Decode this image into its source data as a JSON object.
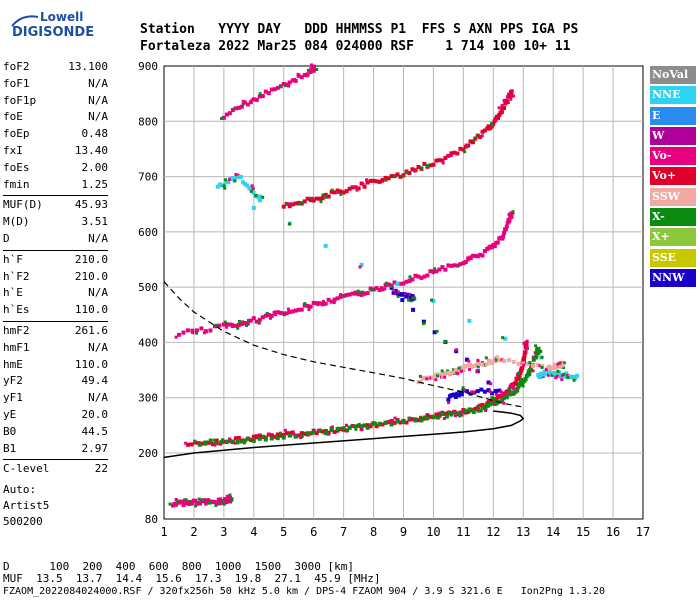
{
  "logo": {
    "line1": "Lowell",
    "line2": "DIGISONDE"
  },
  "header": {
    "line1": "Station   YYYY DAY   DDD HHMMSS P1  FFS S AXN PPS IGA PS",
    "line2": "Fortaleza 2022 Mar25 084 024000 RSF    1 714 100 10+ 11"
  },
  "params_groups": [
    [
      [
        "foF2",
        "13.100"
      ],
      [
        "foF1",
        "N/A"
      ],
      [
        "foF1p",
        "N/A"
      ],
      [
        "foE",
        "N/A"
      ],
      [
        "foEp",
        "0.48"
      ],
      [
        "fxI",
        "13.40"
      ],
      [
        "foEs",
        "2.00"
      ],
      [
        "fmin",
        "1.25"
      ]
    ],
    [
      [
        "MUF(D)",
        "45.93"
      ],
      [
        "M(D)",
        "3.51"
      ],
      [
        "D",
        "N/A"
      ]
    ],
    [
      [
        "h`F",
        "210.0"
      ],
      [
        "h`F2",
        "210.0"
      ],
      [
        "h`E",
        "N/A"
      ],
      [
        "h`Es",
        "110.0"
      ]
    ],
    [
      [
        "hmF2",
        "261.6"
      ],
      [
        "hmF1",
        "N/A"
      ],
      [
        "hmE",
        "110.0"
      ],
      [
        "yF2",
        "49.4"
      ],
      [
        "yF1",
        "N/A"
      ],
      [
        "yE",
        "20.0"
      ],
      [
        "B0",
        "44.5"
      ],
      [
        "B1",
        "2.97"
      ]
    ],
    [
      [
        "C-level",
        "22"
      ]
    ]
  ],
  "auto": {
    "line1": "Auto:",
    "line2": "Artist5",
    "line3": "500200"
  },
  "legend": [
    {
      "label": "NoVal",
      "color": "#8c8c8c"
    },
    {
      "label": "NNE",
      "color": "#2fd3f2"
    },
    {
      "label": "E",
      "color": "#2a8cf0"
    },
    {
      "label": "W",
      "color": "#b0009a"
    },
    {
      "label": "Vo-",
      "color": "#e8007e"
    },
    {
      "label": "Vo+",
      "color": "#e0002a"
    },
    {
      "label": "SSW",
      "color": "#f2a9a3"
    },
    {
      "label": "X-",
      "color": "#0a8a10"
    },
    {
      "label": "X+",
      "color": "#8cc83c"
    },
    {
      "label": "SSE",
      "color": "#c8c800"
    },
    {
      "label": "NNW",
      "color": "#1a00c8"
    }
  ],
  "bottom": {
    "line1": "D      100  200  400  600  800  1000  1500  3000 [km]",
    "line2": "MUF  13.5  13.7  14.4  15.6  17.3  19.8  27.1  45.9 [MHz]",
    "line3": "FZAOM_2022084024000.RSF / 320fx256h 50 kHz 5.0 km / DPS-4 FZAOM 904 / 3.9 S 321.6 E   Ion2Png 1.3.20"
  },
  "chart_data": {
    "type": "scatter",
    "xlim": [
      1,
      17
    ],
    "ylim": [
      80,
      900
    ],
    "x_ticks": [
      1,
      2,
      3,
      4,
      5,
      6,
      7,
      8,
      9,
      10,
      11,
      12,
      13,
      14,
      15,
      16,
      17
    ],
    "y_ticks": [
      80,
      200,
      300,
      400,
      500,
      600,
      700,
      800,
      900
    ],
    "grid": true,
    "traces": [
      {
        "name": "F O-trace",
        "color": "#e0002a",
        "x": [
          1.8,
          3,
          4,
          5,
          6,
          7,
          8,
          9,
          10,
          11,
          11.8,
          12.3,
          12.7,
          12.95,
          13.1
        ],
        "y": [
          215,
          220,
          228,
          233,
          238,
          243,
          250,
          258,
          267,
          275,
          290,
          305,
          325,
          350,
          395
        ]
      },
      {
        "name": "F X-trace",
        "color": "#0a8a10",
        "x": [
          2.2,
          4,
          6,
          8,
          10,
          11.5,
          12.3,
          12.8,
          13.2,
          13.5
        ],
        "y": [
          218,
          225,
          236,
          250,
          265,
          278,
          295,
          315,
          345,
          385
        ]
      },
      {
        "name": "2F O-trace",
        "color": "#e8007e",
        "x": [
          1.5,
          3,
          4,
          5,
          6,
          7,
          8,
          9,
          10,
          11,
          11.8,
          12.3,
          12.6
        ],
        "y": [
          415,
          430,
          440,
          455,
          468,
          482,
          495,
          510,
          527,
          545,
          565,
          590,
          630
        ]
      },
      {
        "name": "3F O-trace",
        "color": "#e0002a",
        "x": [
          5,
          6,
          7,
          8,
          9,
          10,
          11,
          11.8,
          12.2,
          12.6
        ],
        "y": [
          645,
          660,
          675,
          690,
          705,
          725,
          750,
          785,
          810,
          850
        ]
      },
      {
        "name": "4F O-trace",
        "color": "#e8007e",
        "x": [
          3,
          4,
          5,
          6
        ],
        "y": [
          810,
          840,
          865,
          895
        ]
      },
      {
        "name": "Es trace",
        "color": "#e8007e",
        "x": [
          1.3,
          1.8,
          2.3,
          2.8,
          3.2
        ],
        "y": [
          108,
          110,
          112,
          112,
          115
        ]
      },
      {
        "name": "NNE echoes",
        "color": "#2fd3f2",
        "x": [
          13.5,
          13.8,
          14.2,
          14.8,
          2.8,
          3.5,
          4.2
        ],
        "y": [
          340,
          345,
          342,
          338,
          680,
          700,
          660
        ]
      },
      {
        "name": "SSW echoes",
        "color": "#f2a9a3",
        "x": [
          9.5,
          10.2,
          10.8,
          11.5,
          12.2,
          13.8,
          14.3
        ],
        "y": [
          330,
          340,
          350,
          360,
          370,
          355,
          360
        ]
      },
      {
        "name": "NNW echoes",
        "color": "#1a00c8",
        "x": [
          10.5,
          11,
          12.2,
          8.6,
          9.3
        ],
        "y": [
          300,
          310,
          312,
          495,
          480
        ]
      }
    ],
    "profile_solid": {
      "x": [
        1,
        2,
        4,
        6,
        8,
        10,
        11,
        12,
        12.6,
        12.9,
        13.0,
        12.9,
        12.6,
        12
      ],
      "y": [
        192,
        200,
        210,
        218,
        226,
        234,
        238,
        244,
        250,
        258,
        262,
        268,
        272,
        276
      ]
    },
    "profile_dashed": {
      "x": [
        1,
        1.5,
        2,
        3,
        4,
        5,
        6,
        7,
        8,
        9,
        10,
        11,
        11.8,
        12.3,
        12.8,
        13
      ],
      "y": [
        510,
        480,
        455,
        420,
        395,
        378,
        365,
        355,
        345,
        335,
        322,
        310,
        298,
        290,
        285,
        283
      ]
    }
  }
}
